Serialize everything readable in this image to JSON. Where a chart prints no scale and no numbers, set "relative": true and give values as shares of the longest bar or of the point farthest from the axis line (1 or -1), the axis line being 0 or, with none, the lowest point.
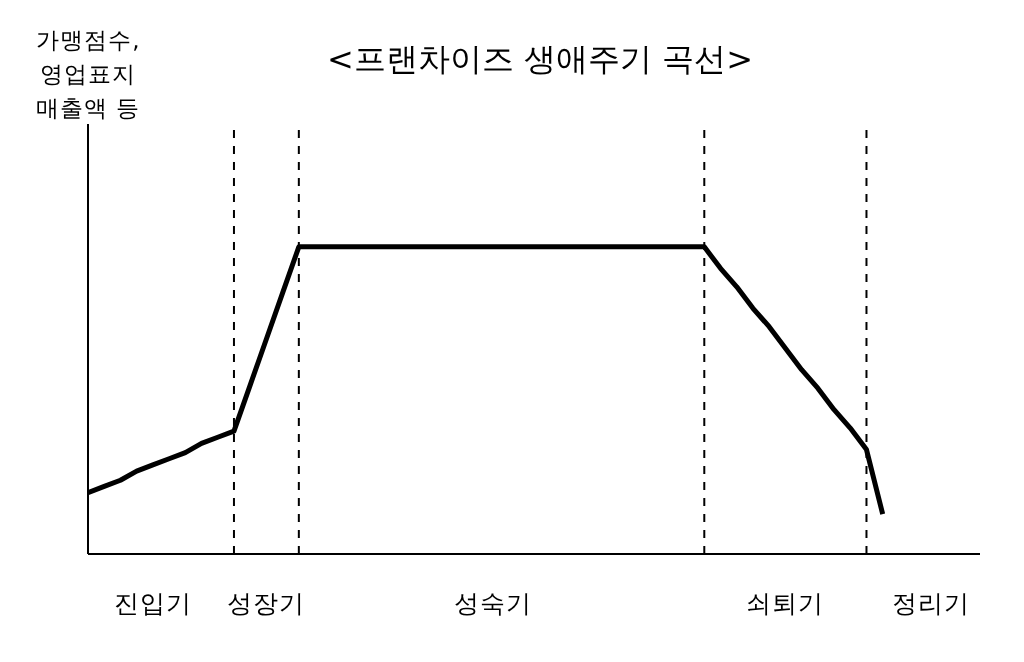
{
  "chart_data": {
    "type": "line",
    "title": "<프랜차이즈 생애주기 곡선>",
    "annotations": [
      "가맹점수,\n영업표지\n매출액 등"
    ],
    "relative": true,
    "categories": [
      null,
      null,
      null,
      null,
      "진입기",
      null,
      null,
      null,
      null,
      null,
      null,
      "성장기",
      null,
      null,
      null,
      null,
      null,
      null,
      null,
      null,
      null,
      null,
      null,
      null,
      null,
      "성숙기",
      null,
      null,
      null,
      null,
      null,
      null,
      null,
      null,
      null,
      null,
      null,
      null,
      null,
      null,
      null,
      null,
      null,
      "쇠퇴기",
      null,
      null,
      null,
      null,
      null,
      null,
      null,
      null,
      "정리기",
      null,
      null,
      null
    ],
    "series": [
      {
        "color": "#000000",
        "values": [
          0.2,
          0.22,
          0.24,
          0.27,
          0.29,
          0.31,
          0.33,
          0.36,
          0.38,
          0.4,
          0.55,
          0.7,
          0.85,
          1,
          1,
          1,
          1,
          1,
          1,
          1,
          1,
          1,
          1,
          1,
          1,
          1,
          1,
          1,
          1,
          1,
          1,
          1,
          1,
          1,
          1,
          1,
          1,
          1,
          1,
          0.93,
          0.87,
          0.8,
          0.74,
          0.67,
          0.6,
          0.54,
          0.47,
          0.41,
          0.34,
          0.13,
          null,
          null,
          null,
          null,
          null,
          null
        ]
      }
    ],
    "tick_labels": "x",
    "marker": "none",
    "line_style": "solid"
  }
}
